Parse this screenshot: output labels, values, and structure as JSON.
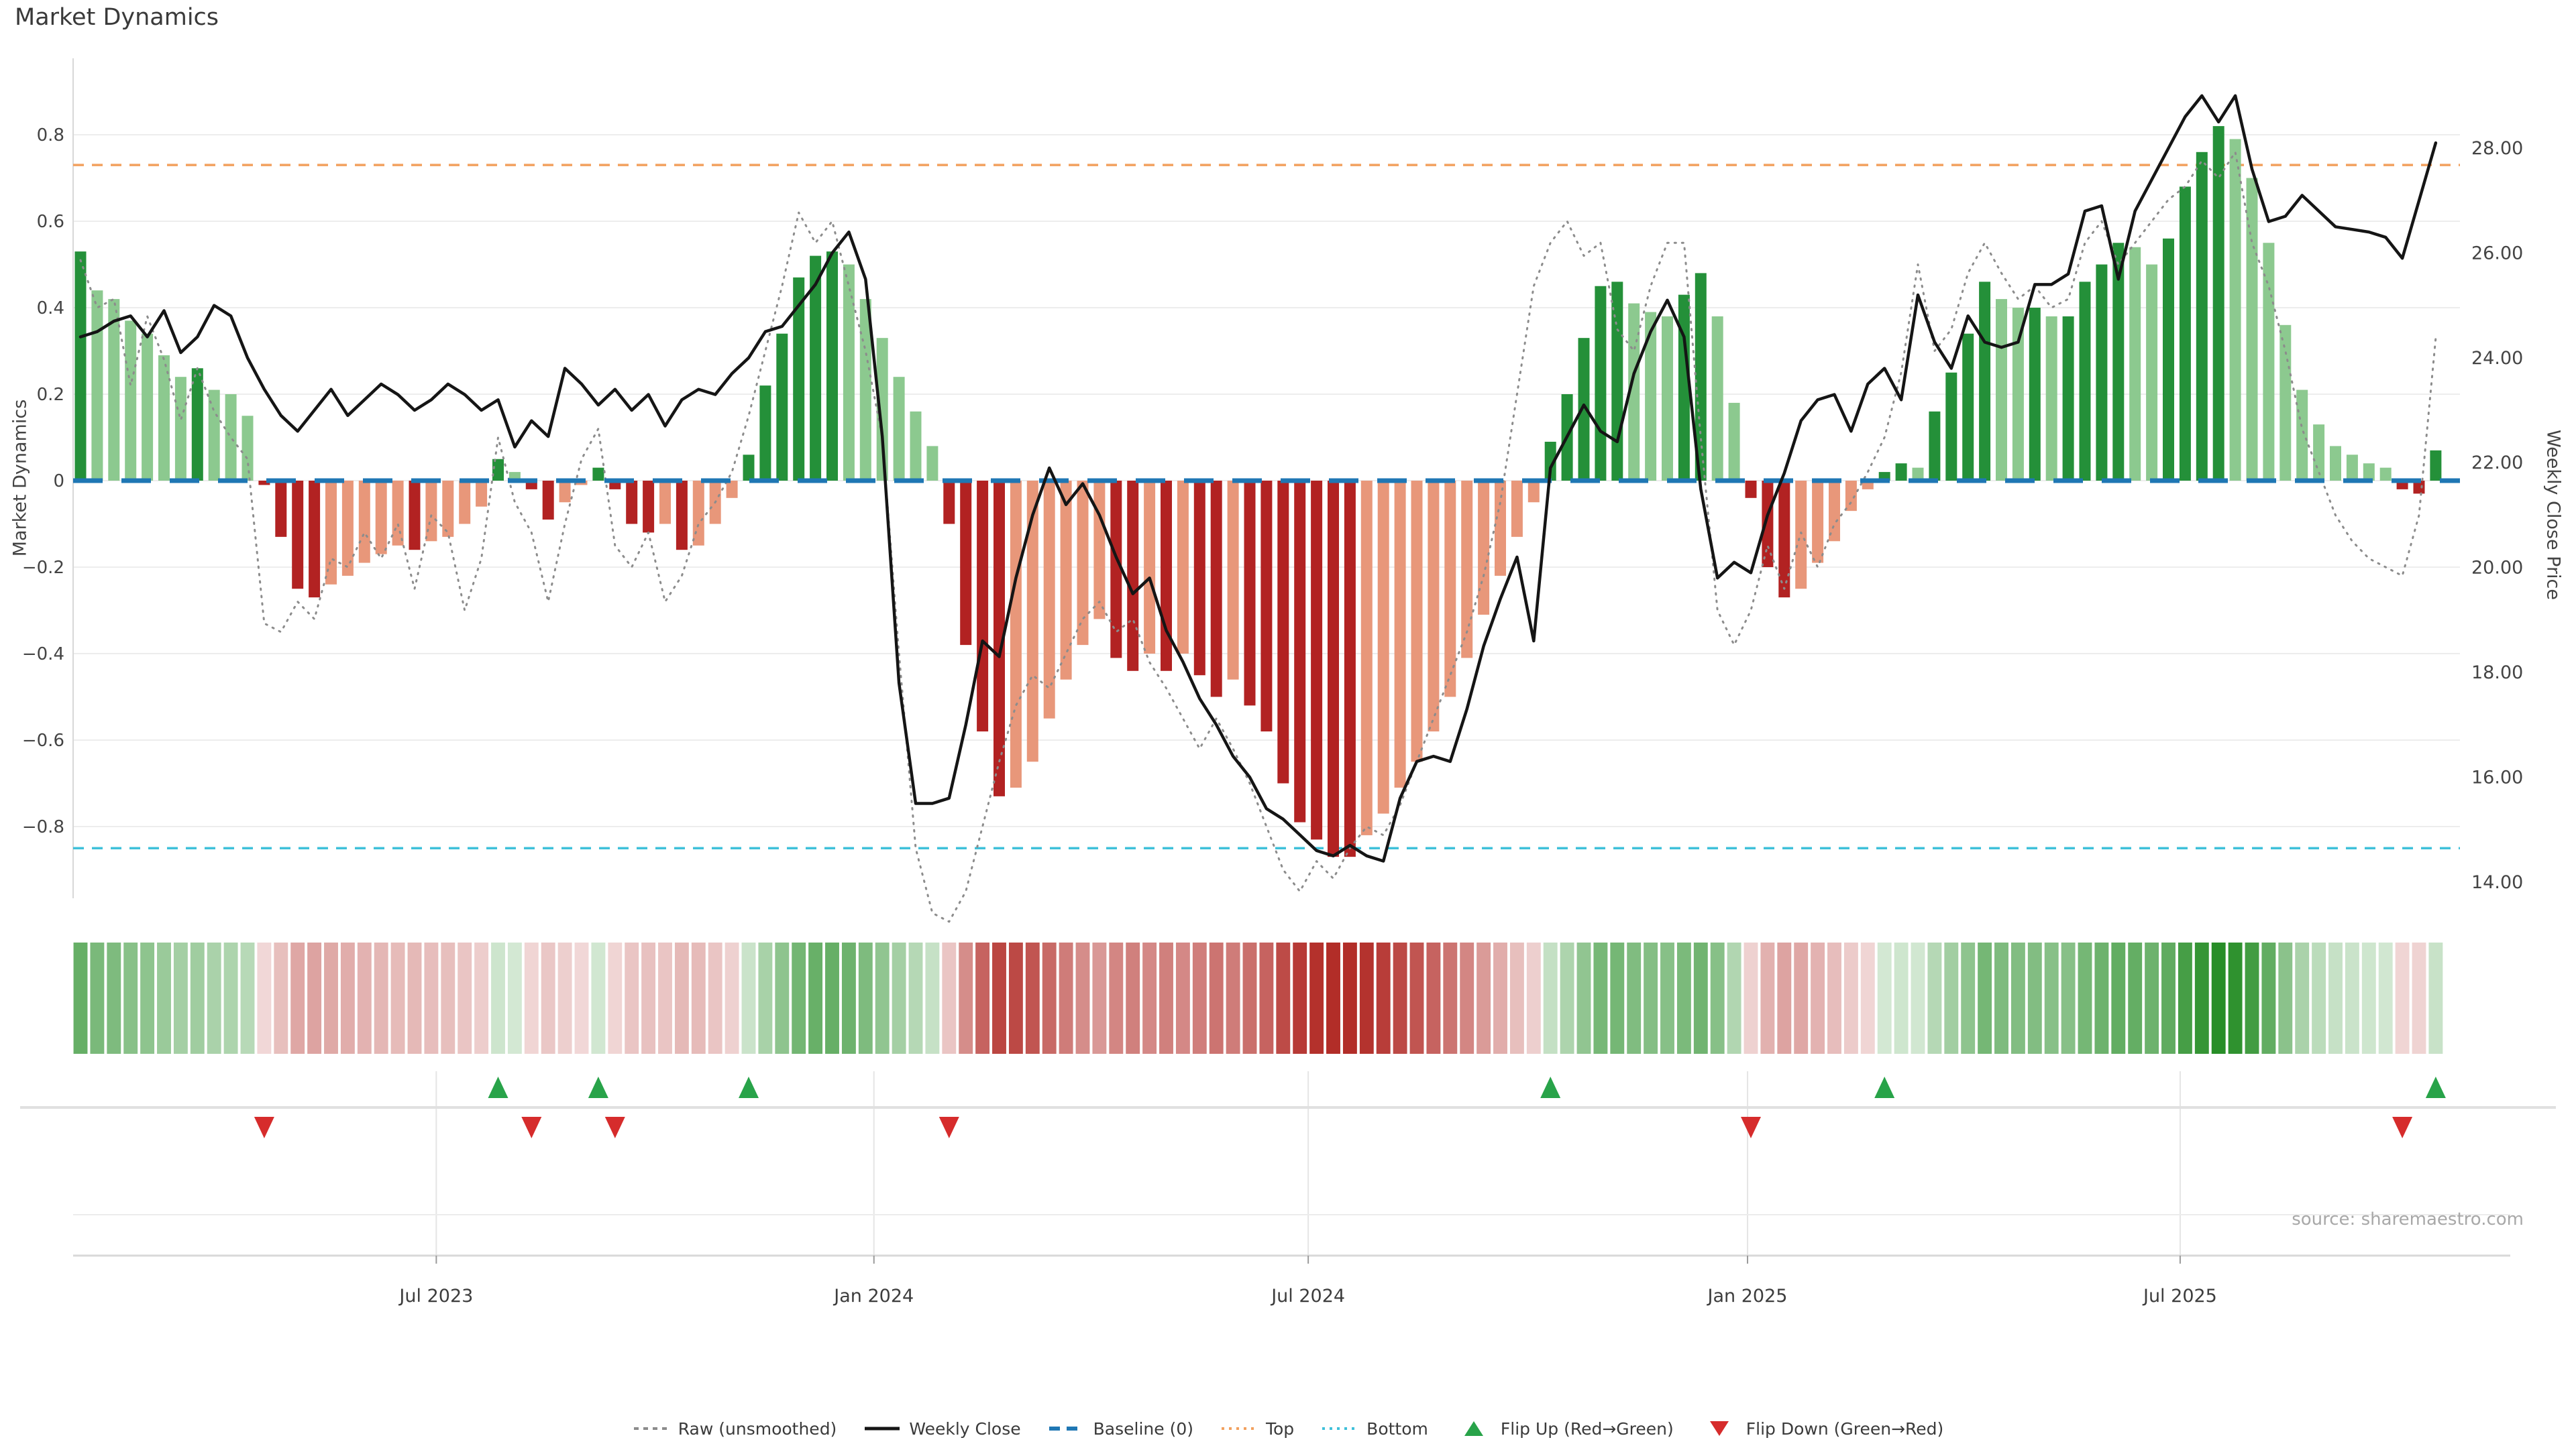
{
  "title": "Market Dynamics",
  "source_note": "source: sharemaestro.com",
  "axes": {
    "left_label": "Market Dynamics",
    "right_label": "Weekly Close Price",
    "left_tick_labels": [
      "0.8",
      "0.6",
      "0.4",
      "0.2",
      "0",
      "−0.2",
      "−0.4",
      "−0.6",
      "−0.8"
    ],
    "left_tick_values": [
      0.8,
      0.6,
      0.4,
      0.2,
      0,
      -0.2,
      -0.4,
      -0.6,
      -0.8
    ],
    "right_tick_labels": [
      "28.00",
      "26.00",
      "24.00",
      "22.00",
      "20.00",
      "18.00",
      "16.00",
      "14.00"
    ],
    "right_tick_values": [
      28,
      26,
      24,
      22,
      20,
      18,
      16,
      14
    ],
    "x_tick_labels": [
      "Jul 2023",
      "Jan 2024",
      "Jul 2024",
      "Jan 2025",
      "Jul 2025"
    ],
    "x_tick_weeks": [
      21.3,
      47.5,
      73.5,
      99.8,
      125.7
    ]
  },
  "chart_data": {
    "type": "bar+line",
    "x_unit": "week-index",
    "n_weeks": 142,
    "left_axis_range": [
      -0.97,
      0.98
    ],
    "right_axis_range": [
      13.7,
      29.7
    ],
    "grid": true,
    "baseline": 0,
    "top_threshold": 0.73,
    "bottom_threshold": -0.85,
    "series": [
      {
        "name": "Market Dynamics (bars)",
        "type": "bar",
        "axis": "left",
        "values": [
          0.53,
          0.44,
          0.42,
          0.37,
          0.34,
          0.29,
          0.24,
          0.26,
          0.21,
          0.2,
          0.15,
          -0.01,
          -0.13,
          -0.25,
          -0.27,
          -0.24,
          -0.22,
          -0.19,
          -0.17,
          -0.15,
          -0.16,
          -0.14,
          -0.13,
          -0.1,
          -0.06,
          0.05,
          0.02,
          -0.02,
          -0.09,
          -0.05,
          -0.01,
          0.03,
          -0.02,
          -0.1,
          -0.12,
          -0.1,
          -0.16,
          -0.15,
          -0.1,
          -0.04,
          0.06,
          0.22,
          0.34,
          0.47,
          0.52,
          0.53,
          0.5,
          0.42,
          0.33,
          0.24,
          0.16,
          0.08,
          -0.1,
          -0.38,
          -0.58,
          -0.73,
          -0.71,
          -0.65,
          -0.55,
          -0.46,
          -0.38,
          -0.32,
          -0.41,
          -0.44,
          -0.4,
          -0.44,
          -0.4,
          -0.45,
          -0.5,
          -0.46,
          -0.52,
          -0.58,
          -0.7,
          -0.79,
          -0.83,
          -0.87,
          -0.87,
          -0.82,
          -0.77,
          -0.71,
          -0.65,
          -0.58,
          -0.5,
          -0.41,
          -0.31,
          -0.22,
          -0.13,
          -0.05,
          0.09,
          0.2,
          0.33,
          0.45,
          0.46,
          0.41,
          0.39,
          0.38,
          0.43,
          0.48,
          0.38,
          0.18,
          -0.04,
          -0.2,
          -0.27,
          -0.25,
          -0.19,
          -0.14,
          -0.07,
          -0.02,
          0.02,
          0.04,
          0.03,
          0.16,
          0.25,
          0.34,
          0.46,
          0.42,
          0.4,
          0.4,
          0.38,
          0.38,
          0.46,
          0.5,
          0.55,
          0.54,
          0.5,
          0.56,
          0.68,
          0.76,
          0.82,
          0.79,
          0.7,
          0.55,
          0.36,
          0.21,
          0.13,
          0.08,
          0.06,
          0.04,
          0.03,
          -0.02,
          -0.03,
          0.07
        ]
      },
      {
        "name": "Raw (unsmoothed)",
        "type": "line",
        "style": "dotted",
        "axis": "left",
        "values": [
          0.51,
          0.4,
          0.42,
          0.22,
          0.38,
          0.28,
          0.14,
          0.26,
          0.16,
          0.1,
          0.05,
          -0.33,
          -0.35,
          -0.28,
          -0.32,
          -0.18,
          -0.2,
          -0.12,
          -0.18,
          -0.1,
          -0.25,
          -0.08,
          -0.12,
          -0.3,
          -0.18,
          0.1,
          -0.05,
          -0.12,
          -0.28,
          -0.1,
          0.05,
          0.12,
          -0.15,
          -0.2,
          -0.12,
          -0.28,
          -0.22,
          -0.1,
          -0.05,
          0.02,
          0.15,
          0.3,
          0.45,
          0.62,
          0.55,
          0.6,
          0.45,
          0.3,
          0.1,
          -0.4,
          -0.85,
          -1.0,
          -1.02,
          -0.95,
          -0.8,
          -0.65,
          -0.52,
          -0.45,
          -0.48,
          -0.4,
          -0.32,
          -0.28,
          -0.35,
          -0.32,
          -0.42,
          -0.48,
          -0.55,
          -0.62,
          -0.55,
          -0.62,
          -0.7,
          -0.8,
          -0.9,
          -0.95,
          -0.88,
          -0.92,
          -0.85,
          -0.8,
          -0.82,
          -0.75,
          -0.65,
          -0.55,
          -0.45,
          -0.35,
          -0.22,
          -0.05,
          0.2,
          0.45,
          0.55,
          0.6,
          0.52,
          0.55,
          0.35,
          0.3,
          0.45,
          0.55,
          0.55,
          0.1,
          -0.3,
          -0.38,
          -0.3,
          -0.15,
          -0.25,
          -0.12,
          -0.2,
          -0.1,
          -0.05,
          0.02,
          0.1,
          0.25,
          0.5,
          0.3,
          0.35,
          0.48,
          0.55,
          0.48,
          0.42,
          0.45,
          0.4,
          0.42,
          0.55,
          0.6,
          0.5,
          0.55,
          0.6,
          0.65,
          0.68,
          0.74,
          0.7,
          0.76,
          0.55,
          0.45,
          0.3,
          0.12,
          0.02,
          -0.08,
          -0.14,
          -0.18,
          -0.2,
          -0.22,
          -0.08,
          0.33
        ]
      },
      {
        "name": "Weekly Close",
        "type": "line",
        "style": "solid",
        "axis": "right",
        "values": [
          24.4,
          24.5,
          24.7,
          24.8,
          24.4,
          24.9,
          24.1,
          24.4,
          25.0,
          24.8,
          24.0,
          23.4,
          22.9,
          22.6,
          23.0,
          23.4,
          22.9,
          23.2,
          23.5,
          23.3,
          23.0,
          23.2,
          23.5,
          23.3,
          23.0,
          23.2,
          22.3,
          22.8,
          22.5,
          23.8,
          23.5,
          23.1,
          23.4,
          23.0,
          23.3,
          22.7,
          23.2,
          23.4,
          23.3,
          23.7,
          24.0,
          24.5,
          24.6,
          25.0,
          25.4,
          26.0,
          26.4,
          25.5,
          22.5,
          17.8,
          15.5,
          15.5,
          15.6,
          17.0,
          18.6,
          18.3,
          19.8,
          21.0,
          21.9,
          21.2,
          21.6,
          21.0,
          20.2,
          19.5,
          19.8,
          18.8,
          18.2,
          17.5,
          17.0,
          16.4,
          16.0,
          15.4,
          15.2,
          14.9,
          14.6,
          14.5,
          14.7,
          14.5,
          14.4,
          15.6,
          16.3,
          16.4,
          16.3,
          17.3,
          18.5,
          19.4,
          20.2,
          18.6,
          21.9,
          22.5,
          23.1,
          22.6,
          22.4,
          23.7,
          24.5,
          25.1,
          24.4,
          21.5,
          19.8,
          20.1,
          19.9,
          21.0,
          21.8,
          22.8,
          23.2,
          23.3,
          22.6,
          23.5,
          23.8,
          23.2,
          25.2,
          24.3,
          23.8,
          24.8,
          24.3,
          24.2,
          24.3,
          25.4,
          25.4,
          25.6,
          26.8,
          26.9,
          25.5,
          26.8,
          27.4,
          28.0,
          28.6,
          29.0,
          28.5,
          29.0,
          27.6,
          26.6,
          26.7,
          27.1,
          26.8,
          26.5,
          26.45,
          26.4,
          26.3,
          25.9,
          27.0,
          28.1
        ]
      }
    ],
    "flip_up_weeks": [
      25,
      31,
      40,
      88,
      108,
      141
    ],
    "flip_down_weeks": [
      11,
      27,
      32,
      52,
      100,
      139
    ],
    "heatmap": "mirrors bar values: green for positive, red for negative, intensity proportional to magnitude"
  },
  "legend": {
    "items": [
      {
        "name": "raw-unsmoothed",
        "label": "Raw (unsmoothed)",
        "swatch": "dashed-line",
        "color": "#8c8c8c"
      },
      {
        "name": "weekly-close",
        "label": "Weekly Close",
        "swatch": "solid-line",
        "color": "#151515"
      },
      {
        "name": "baseline",
        "label": "Baseline (0)",
        "swatch": "bold-dashed-line",
        "color": "#1f77b4"
      },
      {
        "name": "top",
        "label": "Top",
        "swatch": "dotted-line",
        "color": "#f2a15f"
      },
      {
        "name": "bottom",
        "label": "Bottom",
        "swatch": "dotted-line",
        "color": "#3fc0da"
      },
      {
        "name": "flip-up",
        "label": "Flip Up (Red→Green)",
        "swatch": "triangle-up",
        "color": "#28a349"
      },
      {
        "name": "flip-down",
        "label": "Flip Down (Green→Red)",
        "swatch": "triangle-down",
        "color": "#d62c2c"
      }
    ]
  },
  "colors": {
    "bar_dark_green": "#249039",
    "bar_light_green": "#8cc98f",
    "bar_dark_red": "#b22222",
    "bar_salmon": "#e8977a",
    "weekly_close_line": "#151515",
    "raw_line": "#8c8c8c",
    "baseline_blue": "#1f77b4",
    "top_orange": "#f2a15f",
    "bottom_cyan": "#3fc0da",
    "flip_up_green": "#28a349",
    "flip_down_red": "#d62c2c",
    "grid": "#ededed",
    "axis_text": "#444444",
    "title_text": "#3a3a3a",
    "source_text": "#a8a8a8",
    "heat_green_rgb": "34,139,34",
    "heat_red_rgb": "178,45,40"
  }
}
